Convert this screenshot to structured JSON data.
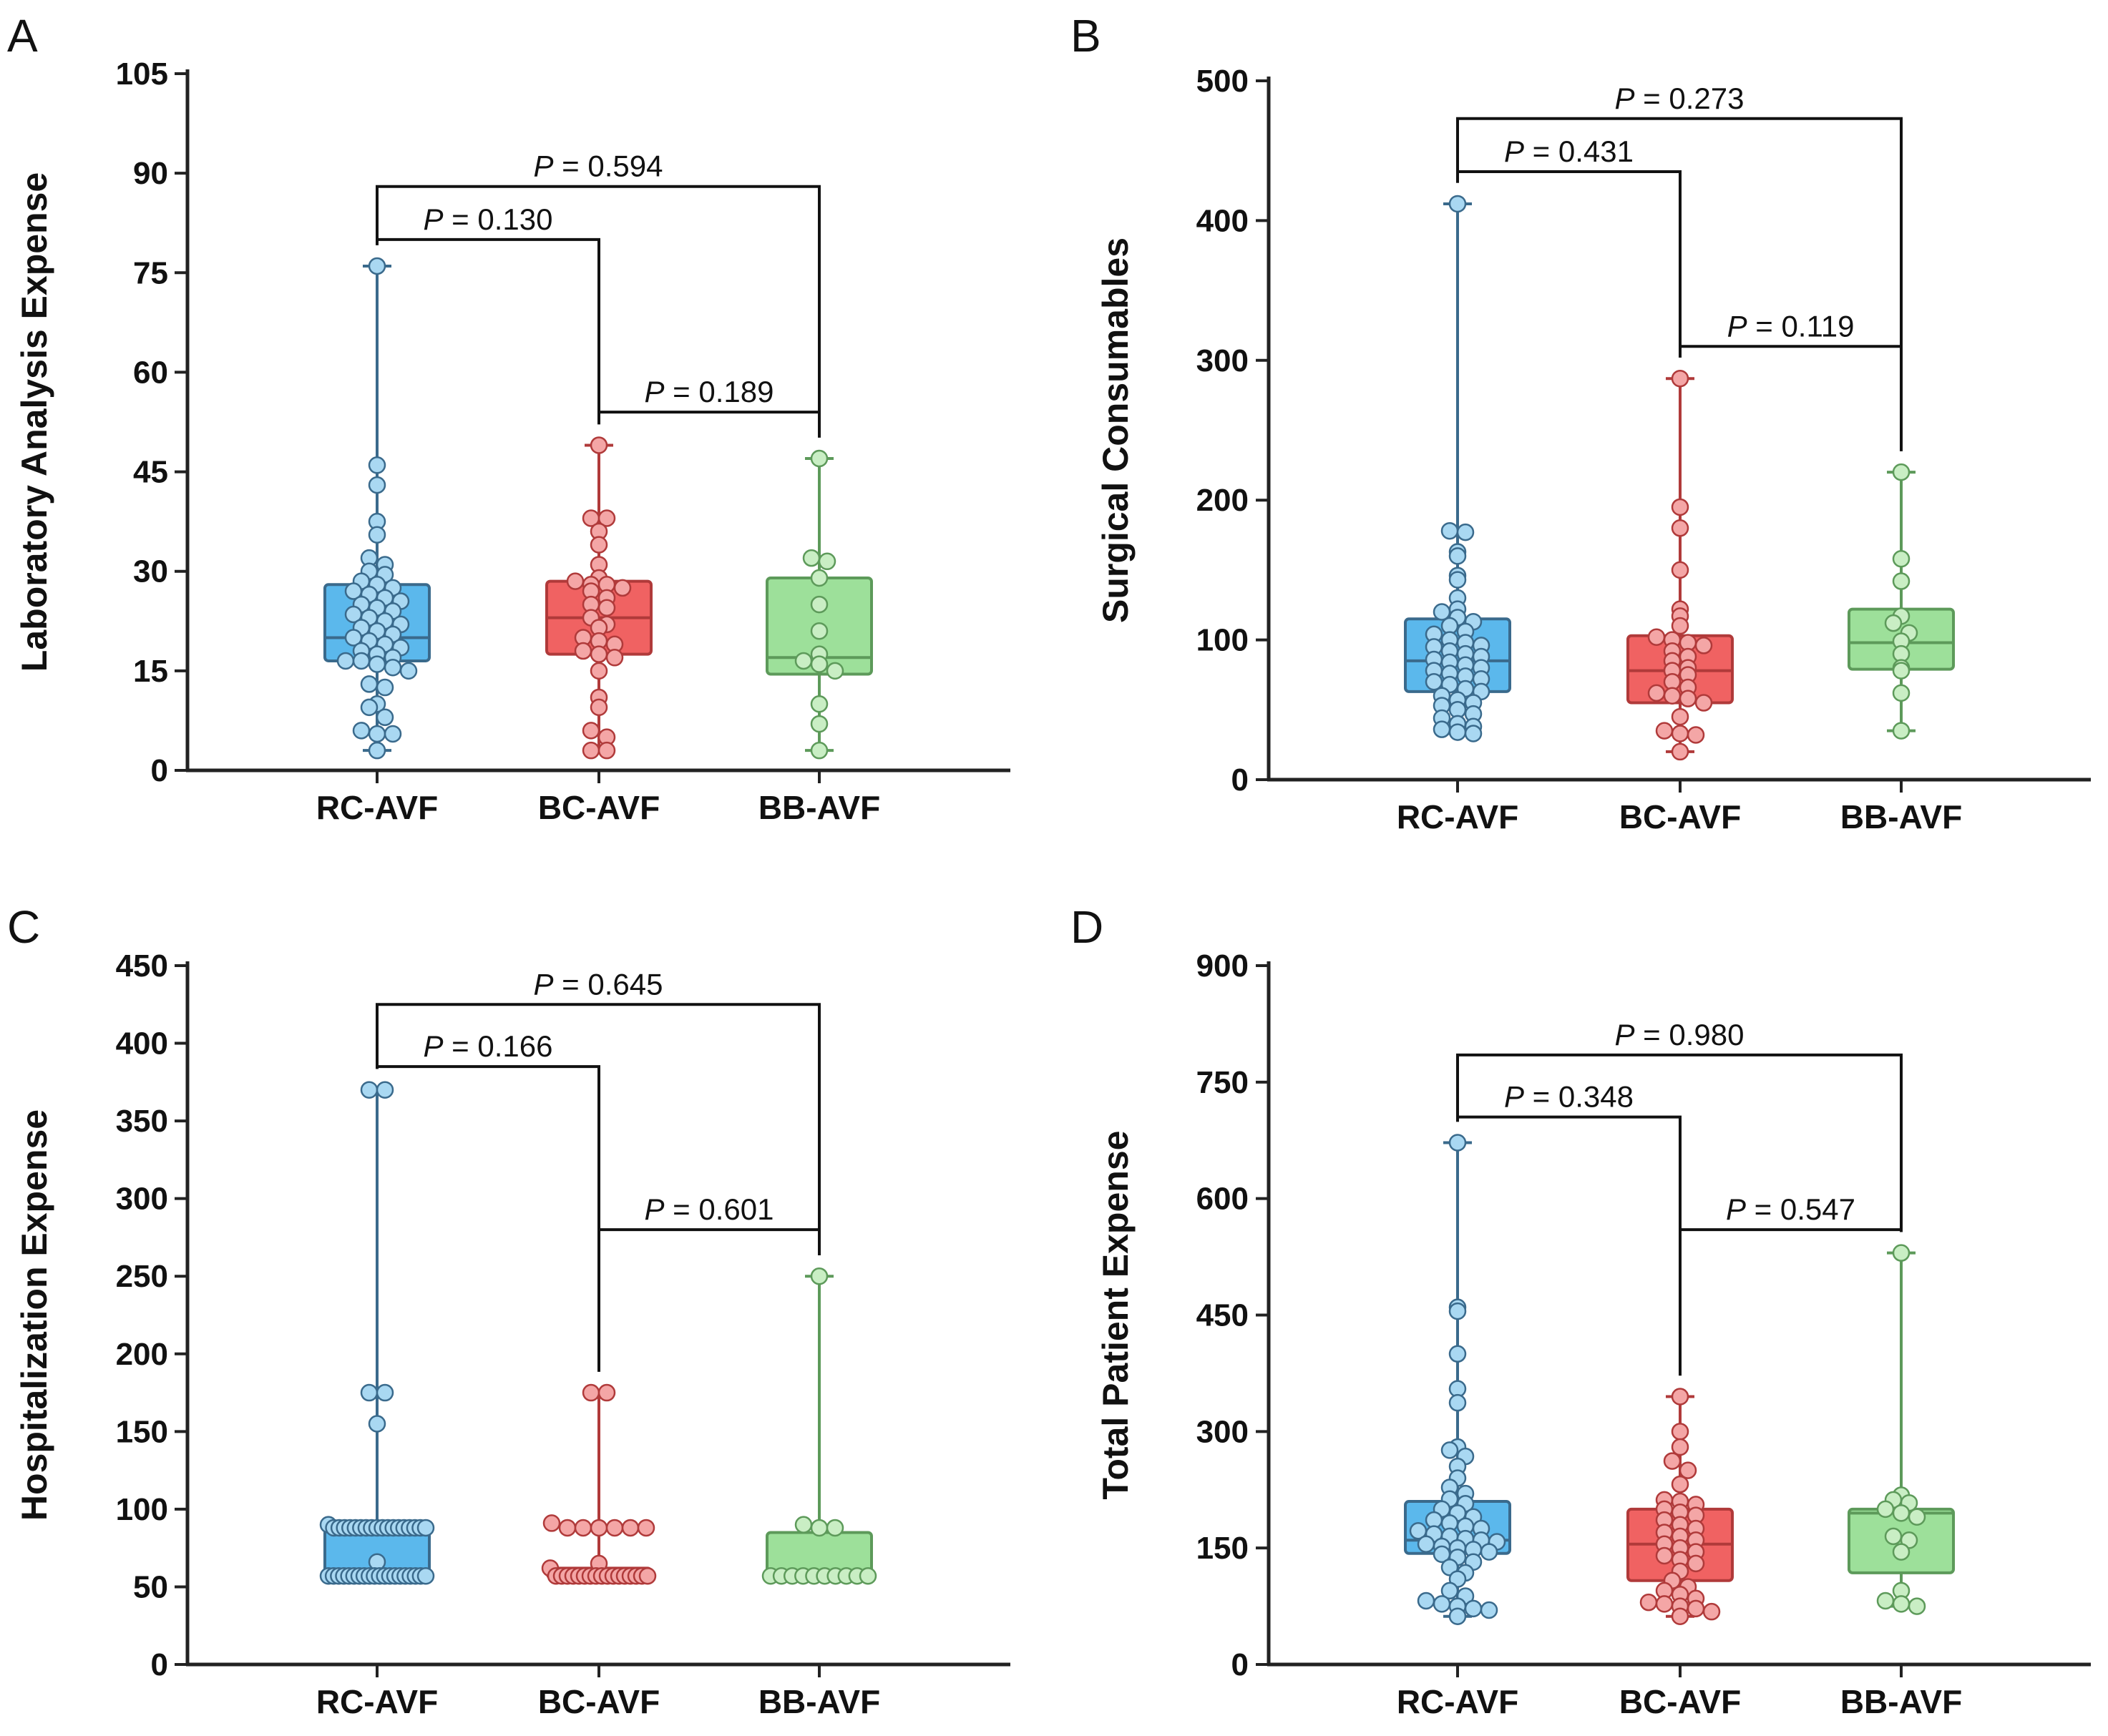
{
  "figure": {
    "group_colors": {
      "RC-AVF": {
        "fill": "#5bb8ec",
        "stroke": "#3a6a8c",
        "point": "#a9d8f2"
      },
      "BC-AVF": {
        "fill": "#f06262",
        "stroke": "#b03a3a",
        "point": "#f4a6a6"
      },
      "BB-AVF": {
        "fill": "#9de09a",
        "stroke": "#5d9a5a",
        "point": "#c9eec4"
      }
    },
    "p_prefix": "P",
    "p_equals": " = "
  },
  "chart_data": [
    {
      "panel": "A",
      "type": "boxplot",
      "ylabel": "Laboratory Analysis Expense",
      "ylim": [
        0,
        105
      ],
      "yticks": [
        0,
        15,
        30,
        45,
        60,
        75,
        90,
        105
      ],
      "categories": [
        "RC-AVF",
        "BC-AVF",
        "BB-AVF"
      ],
      "boxes": [
        {
          "name": "RC-AVF",
          "min": 3,
          "q1": 16.5,
          "median": 20,
          "q3": 28,
          "max": 76,
          "points": [
            76,
            46,
            43,
            37.5,
            35.5,
            32,
            31,
            30,
            29.5,
            28.5,
            28,
            27.5,
            27,
            26.5,
            26,
            25.5,
            25,
            24.5,
            24,
            23.5,
            23,
            22.5,
            22,
            21.5,
            21,
            20.5,
            20,
            19.5,
            19,
            18.5,
            18,
            17.5,
            17,
            16.5,
            16.5,
            16,
            15.5,
            15,
            13,
            12.5,
            10,
            9.5,
            8,
            6,
            5.5,
            5.5,
            3
          ]
        },
        {
          "name": "BC-AVF",
          "min": 3,
          "q1": 17.5,
          "median": 23,
          "q3": 28.5,
          "max": 49,
          "points": [
            49,
            38,
            38,
            36,
            34,
            31,
            29,
            28.5,
            28,
            28,
            27.5,
            27,
            26,
            25,
            24.5,
            23,
            22,
            21.5,
            20,
            19.5,
            19,
            18,
            17.5,
            17,
            15,
            11,
            9.5,
            6,
            5,
            3,
            3
          ]
        },
        {
          "name": "BB-AVF",
          "min": 3,
          "q1": 14.5,
          "median": 17,
          "q3": 29,
          "max": 47,
          "points": [
            47,
            32,
            31.5,
            29,
            25,
            21,
            17.5,
            16.5,
            16,
            15,
            10,
            7,
            3
          ]
        }
      ],
      "comparisons": [
        {
          "from": "RC-AVF",
          "to": "BC-AVF",
          "p": "0.130",
          "bracket_y": 80
        },
        {
          "from": "RC-AVF",
          "to": "BB-AVF",
          "p": "0.594",
          "bracket_y": 88
        },
        {
          "from": "BC-AVF",
          "to": "BB-AVF",
          "p": "0.189",
          "bracket_y": 54
        }
      ]
    },
    {
      "panel": "B",
      "type": "boxplot",
      "ylabel": "Surgical Consumables",
      "ylim": [
        0,
        500
      ],
      "yticks": [
        0,
        100,
        200,
        300,
        400,
        500
      ],
      "categories": [
        "RC-AVF",
        "BC-AVF",
        "BB-AVF"
      ],
      "boxes": [
        {
          "name": "RC-AVF",
          "min": 33,
          "q1": 63,
          "median": 85,
          "q3": 115,
          "max": 412,
          "points": [
            412,
            178,
            177,
            163,
            160,
            146,
            143,
            130,
            122,
            120,
            116,
            113,
            110,
            106,
            104,
            100,
            98,
            96,
            95,
            92,
            90,
            88,
            86,
            84,
            82,
            80,
            78,
            76,
            74,
            72,
            70,
            68,
            65,
            63,
            60,
            57,
            55,
            53,
            50,
            47,
            44,
            40,
            38,
            36,
            34,
            33
          ]
        },
        {
          "name": "BC-AVF",
          "min": 20,
          "q1": 55,
          "median": 78,
          "q3": 103,
          "max": 287,
          "points": [
            287,
            195,
            180,
            150,
            122,
            117,
            110,
            102,
            100,
            98,
            96,
            92,
            88,
            85,
            80,
            78,
            75,
            70,
            66,
            62,
            60,
            58,
            55,
            45,
            35,
            33,
            32,
            20
          ]
        },
        {
          "name": "BB-AVF",
          "min": 35,
          "q1": 79,
          "median": 98,
          "q3": 122,
          "max": 220,
          "points": [
            220,
            158,
            142,
            117,
            112,
            105,
            99,
            90,
            80,
            78,
            62,
            35
          ]
        }
      ],
      "comparisons": [
        {
          "from": "RC-AVF",
          "to": "BC-AVF",
          "p": "0.431",
          "bracket_y": 435
        },
        {
          "from": "RC-AVF",
          "to": "BB-AVF",
          "p": "0.273",
          "bracket_y": 473
        },
        {
          "from": "BC-AVF",
          "to": "BB-AVF",
          "p": "0.119",
          "bracket_y": 310
        }
      ]
    },
    {
      "panel": "C",
      "type": "boxplot",
      "ylabel": "Hospitalization Expense",
      "ylim": [
        0,
        450
      ],
      "yticks": [
        0,
        50,
        100,
        150,
        200,
        250,
        300,
        350,
        400,
        450
      ],
      "categories": [
        "RC-AVF",
        "BC-AVF",
        "BB-AVF"
      ],
      "boxes": [
        {
          "name": "RC-AVF",
          "min": 57,
          "q1": 57,
          "median": 57,
          "q3": 87,
          "max": 370,
          "points": [
            370,
            370,
            175,
            175,
            155,
            90,
            88,
            88,
            88,
            88,
            88,
            88,
            88,
            88,
            88,
            88,
            88,
            88,
            88,
            88,
            88,
            88,
            88,
            88,
            66,
            57,
            57,
            57,
            57,
            57,
            57,
            57,
            57,
            57,
            57,
            57,
            57,
            57,
            57,
            57,
            57,
            57,
            57,
            57,
            57
          ]
        },
        {
          "name": "BC-AVF",
          "min": 57,
          "q1": 57,
          "median": 57,
          "q3": 62,
          "max": 175,
          "points": [
            175,
            175,
            91,
            88,
            88,
            88,
            88,
            88,
            88,
            65,
            62,
            57,
            57,
            57,
            57,
            57,
            57,
            57,
            57,
            57,
            57,
            57,
            57,
            57,
            57,
            57,
            57,
            57
          ]
        },
        {
          "name": "BB-AVF",
          "min": 57,
          "q1": 57,
          "median": 57,
          "q3": 85,
          "max": 250,
          "points": [
            250,
            90,
            88,
            88,
            57,
            57,
            57,
            57,
            57,
            57,
            57,
            57,
            57,
            57
          ]
        }
      ],
      "comparisons": [
        {
          "from": "RC-AVF",
          "to": "BC-AVF",
          "p": "0.166",
          "bracket_y": 385
        },
        {
          "from": "RC-AVF",
          "to": "BB-AVF",
          "p": "0.645",
          "bracket_y": 425
        },
        {
          "from": "BC-AVF",
          "to": "BB-AVF",
          "p": "0.601",
          "bracket_y": 280
        }
      ]
    },
    {
      "panel": "D",
      "type": "boxplot",
      "ylabel": "Total Patient Expense",
      "ylim": [
        0,
        900
      ],
      "yticks": [
        0,
        150,
        300,
        450,
        600,
        750,
        900
      ],
      "categories": [
        "RC-AVF",
        "BC-AVF",
        "BB-AVF"
      ],
      "boxes": [
        {
          "name": "RC-AVF",
          "min": 62,
          "q1": 143,
          "median": 160,
          "q3": 210,
          "max": 672,
          "points": [
            672,
            460,
            455,
            400,
            355,
            337,
            280,
            276,
            268,
            255,
            240,
            228,
            220,
            213,
            207,
            200,
            195,
            190,
            186,
            182,
            178,
            175,
            172,
            168,
            165,
            162,
            160,
            158,
            155,
            152,
            150,
            148,
            145,
            142,
            138,
            132,
            125,
            118,
            110,
            95,
            88,
            82,
            78,
            75,
            72,
            70,
            62
          ]
        },
        {
          "name": "BC-AVF",
          "min": 62,
          "q1": 108,
          "median": 155,
          "q3": 200,
          "max": 345,
          "points": [
            345,
            300,
            280,
            262,
            250,
            232,
            212,
            210,
            206,
            200,
            196,
            192,
            186,
            180,
            175,
            170,
            165,
            160,
            155,
            150,
            145,
            140,
            135,
            130,
            120,
            108,
            100,
            95,
            90,
            85,
            80,
            78,
            75,
            72,
            68,
            62
          ]
        },
        {
          "name": "BB-AVF",
          "min": 75,
          "q1": 118,
          "median": 195,
          "q3": 200,
          "max": 530,
          "points": [
            530,
            218,
            212,
            208,
            200,
            195,
            190,
            165,
            160,
            145,
            95,
            82,
            78,
            75
          ]
        }
      ],
      "comparisons": [
        {
          "from": "RC-AVF",
          "to": "BC-AVF",
          "p": "0.348",
          "bracket_y": 705
        },
        {
          "from": "RC-AVF",
          "to": "BB-AVF",
          "p": "0.980",
          "bracket_y": 785
        },
        {
          "from": "BC-AVF",
          "to": "BB-AVF",
          "p": "0.547",
          "bracket_y": 560
        }
      ]
    }
  ]
}
